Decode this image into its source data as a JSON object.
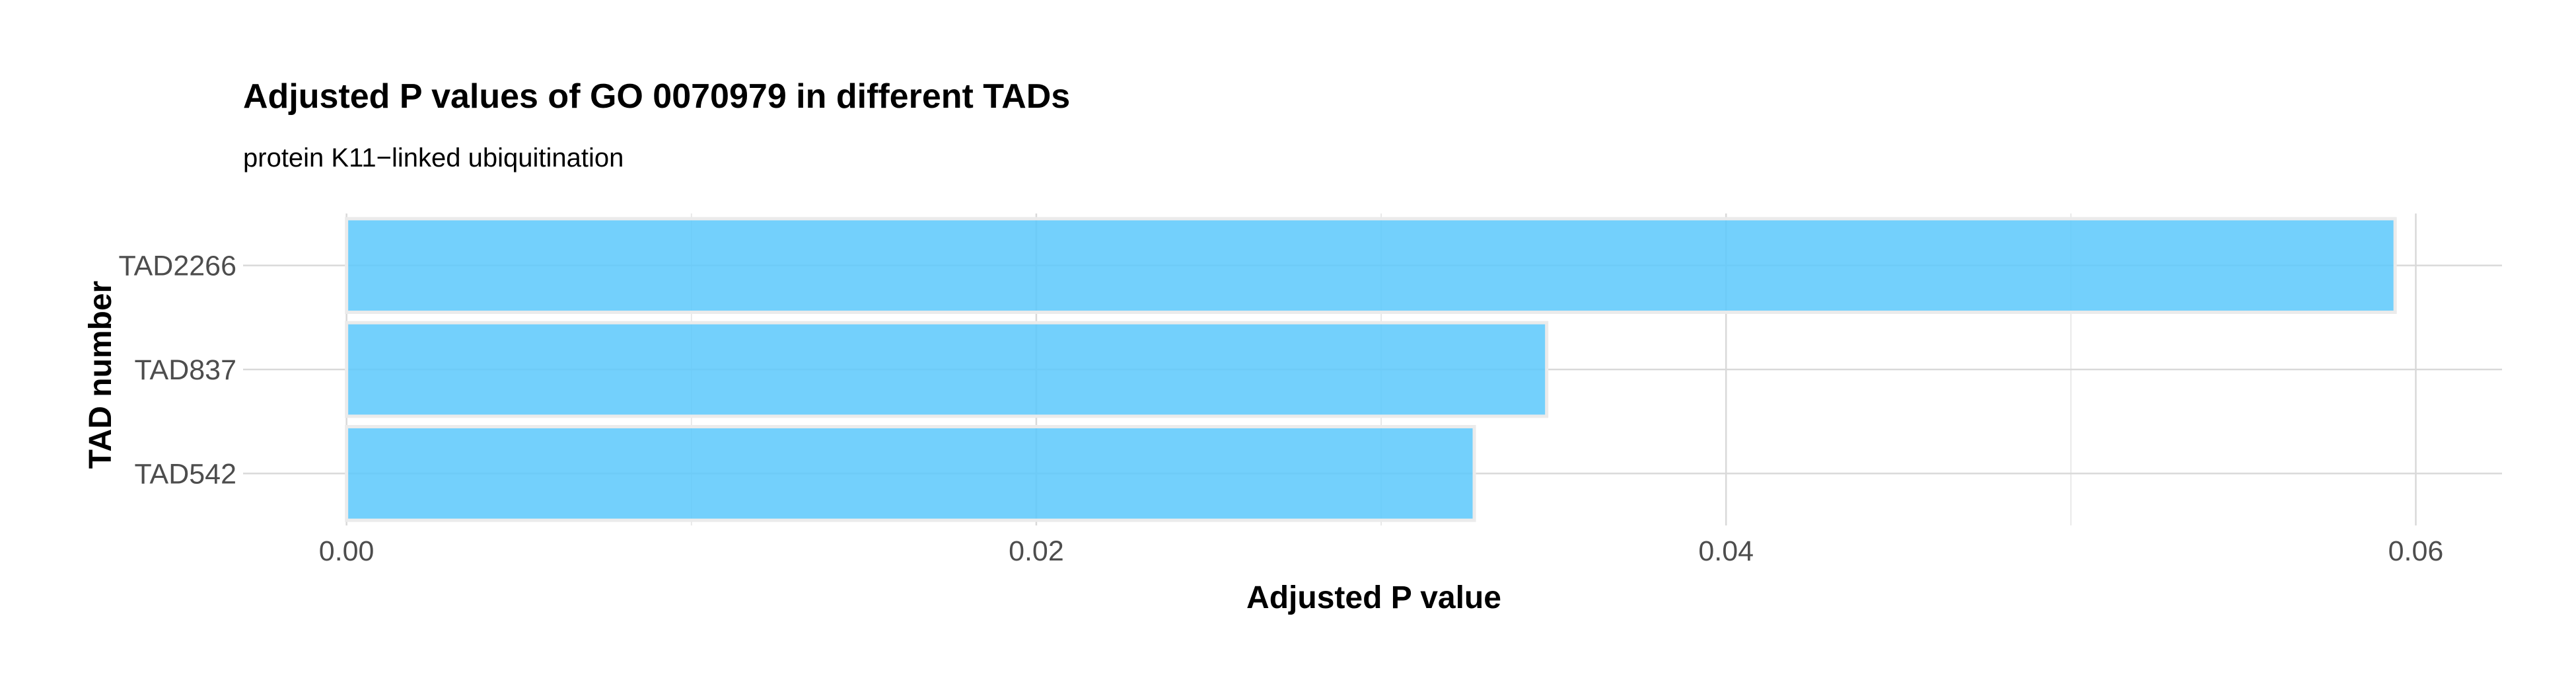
{
  "chart_data": {
    "type": "bar",
    "orientation": "horizontal",
    "title": "Adjusted P values of GO 0070979 in different TADs",
    "subtitle": "protein K11−linked ubiquitination",
    "xlabel": "Adjusted P value",
    "ylabel": "TAD number",
    "categories": [
      "TAD2266",
      "TAD837",
      "TAD542"
    ],
    "values": [
      0.0594,
      0.0348,
      0.0327
    ],
    "xlim": [
      -0.003,
      0.0625
    ],
    "xticks": [
      0.0,
      0.02,
      0.04,
      0.06
    ],
    "xtick_labels": [
      "0.00",
      "0.02",
      "0.04",
      "0.06"
    ],
    "bar_color": "#5bc8fb",
    "bar_border_color": "#ebebeb",
    "grid": true,
    "legend": "none"
  }
}
